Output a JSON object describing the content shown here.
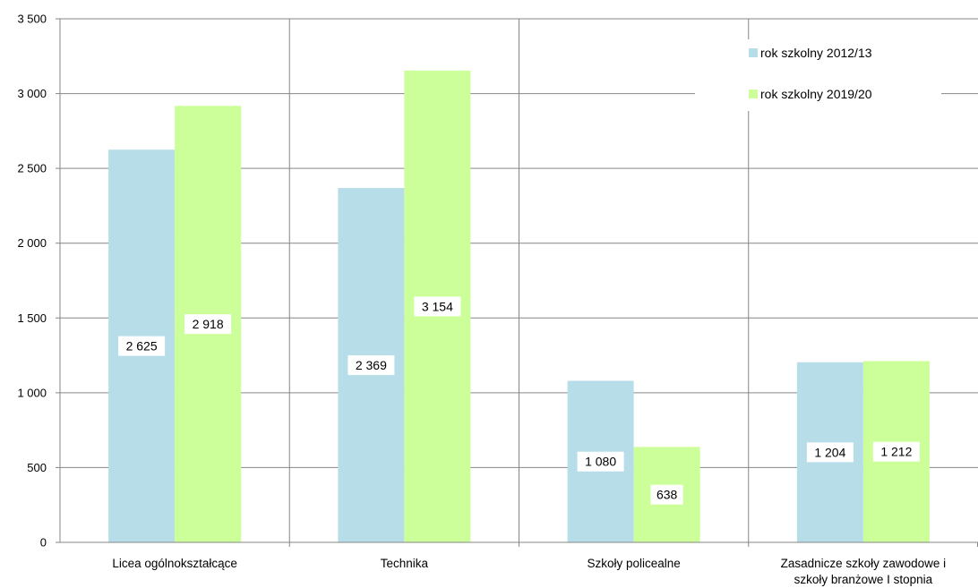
{
  "chart_data": {
    "type": "bar",
    "categories": [
      "Licea ogólnokształcące",
      "Technika",
      "Szkoły policealne",
      "Zasadnicze szkoły zawodowe i szkoły branżowe I stopnia"
    ],
    "category_lines": [
      [
        "Licea ogólnokształcące"
      ],
      [
        "Technika"
      ],
      [
        "Szkoły policealne"
      ],
      [
        "Zasadnicze szkoły zawodowe i",
        "szkoły branżowe I stopnia"
      ]
    ],
    "series": [
      {
        "name": "rok szkolny 2012/13",
        "values": [
          2625,
          2369,
          1080,
          1204
        ],
        "labels": [
          "2 625",
          "2 369",
          "1 080",
          "1 204"
        ],
        "color": "#b7dde8"
      },
      {
        "name": "rok szkolny 2019/20",
        "values": [
          2918,
          3154,
          638,
          1212
        ],
        "labels": [
          "2 918",
          "3 154",
          "638",
          "1 212"
        ],
        "color": "#ccff99"
      }
    ],
    "ylim": [
      0,
      3500
    ],
    "yticks": [
      0,
      500,
      1000,
      1500,
      2000,
      2500,
      3000,
      3500
    ],
    "ytick_labels": [
      "0",
      "500",
      "1 000",
      "1 500",
      "2 000",
      "2 500",
      "3 000",
      "3 500"
    ],
    "title": "",
    "xlabel": "",
    "ylabel": "",
    "grid": true,
    "legend_position": "top-right"
  }
}
